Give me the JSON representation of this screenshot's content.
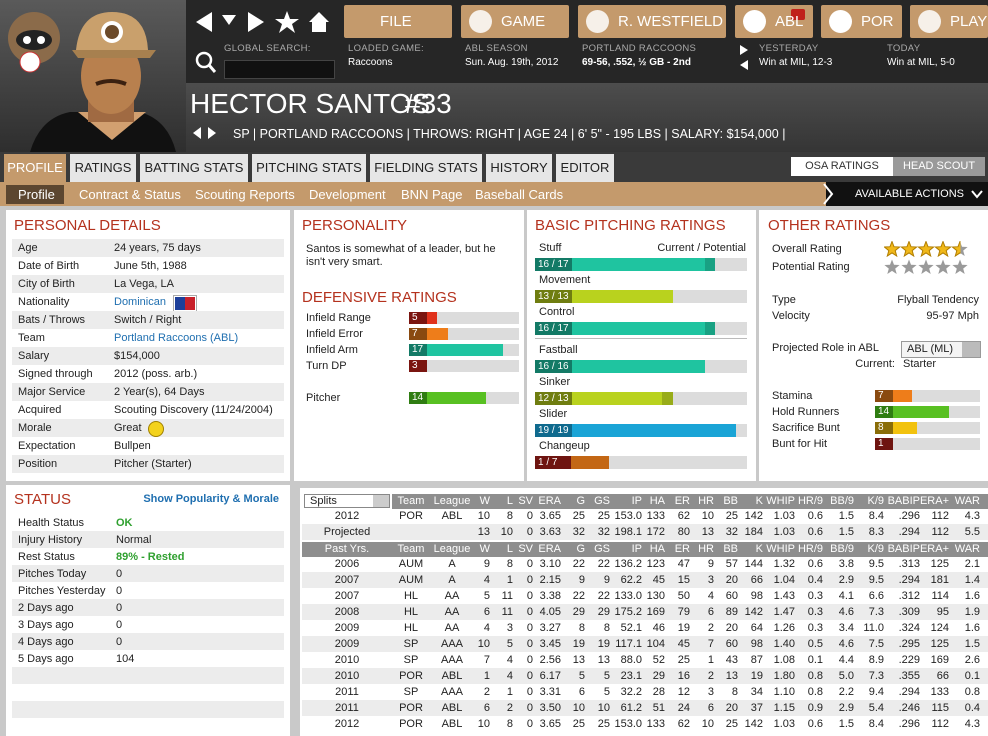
{
  "header": {
    "nav_buttons": [
      "FILE",
      "GAME",
      "R. WESTFIELD",
      "ABL",
      "POR",
      "PLAY"
    ],
    "search_label": "GLOBAL SEARCH:",
    "info": [
      {
        "label": "LOADED GAME:",
        "value": "Raccoons"
      },
      {
        "label": "ABL SEASON",
        "value": "Sun. Aug. 19th, 2012"
      },
      {
        "label": "PORTLAND RACCOONS",
        "value": "69-56, .552, ½ GB - 2nd"
      },
      {
        "label": "YESTERDAY",
        "value": "Win at MIL, 12-3"
      },
      {
        "label": "TODAY",
        "value": "Win at MIL, 5-0"
      }
    ]
  },
  "player": {
    "name": "HECTOR SANTOS",
    "number": "#33",
    "info": "SP | PORTLAND RACCOONS | THROWS: RIGHT | AGE 24 | 6' 5\" - 195 LBS | SALARY: $154,000 |"
  },
  "tabs": [
    "PROFILE",
    "RATINGS",
    "BATTING STATS",
    "PITCHING STATS",
    "FIELDING STATS",
    "HISTORY",
    "EDITOR"
  ],
  "scout_tabs": [
    "OSA RATINGS",
    "HEAD SCOUT"
  ],
  "subtabs": [
    "Profile",
    "Contract & Status",
    "Scouting Reports",
    "Development",
    "BNN Page",
    "Baseball Cards"
  ],
  "actions": "AVAILABLE ACTIONS",
  "rating_scale": [
    0,
    20
  ],
  "personal_details": {
    "title": "PERSONAL DETAILS",
    "rows": [
      [
        "Age",
        "24 years, 75 days"
      ],
      [
        "Date of Birth",
        "June 5th, 1988"
      ],
      [
        "City of Birth",
        "La Vega, LA"
      ],
      [
        "Nationality",
        "Dominican"
      ],
      [
        "Bats / Throws",
        "Switch / Right"
      ],
      [
        "Team",
        "Portland Raccoons (ABL)"
      ],
      [
        "Salary",
        "$154,000"
      ],
      [
        "Signed through",
        "2012 (poss. arb.)"
      ],
      [
        "Major Service",
        "2 Year(s), 64 Days"
      ],
      [
        "Acquired",
        "Scouting Discovery (11/24/2004)"
      ],
      [
        "Morale",
        "Great"
      ],
      [
        "Expectation",
        "Bullpen"
      ],
      [
        "Position",
        "Pitcher (Starter)"
      ]
    ]
  },
  "personality": {
    "title": "PERSONALITY",
    "text": "Santos is somewhat of a leader, but he isn't very smart."
  },
  "defensive": {
    "title": "DEFENSIVE RATINGS",
    "rows": [
      {
        "label": "Infield Range",
        "value": 5
      },
      {
        "label": "Infield Error",
        "value": 7
      },
      {
        "label": "Infield Arm",
        "value": 17
      },
      {
        "label": "Turn DP",
        "value": 3
      },
      {
        "label": "Pitcher",
        "value": 14
      }
    ]
  },
  "pitching": {
    "title": "BASIC PITCHING RATINGS",
    "header": "Current / Potential",
    "rows": [
      {
        "label": "Stuff",
        "current": 16,
        "potential": 17,
        "value_label": "16 / 17"
      },
      {
        "label": "Movement",
        "current": 13,
        "potential": 13,
        "value_label": "13 / 13"
      },
      {
        "label": "Control",
        "current": 16,
        "potential": 17,
        "value_label": "16 / 17"
      },
      {
        "label": "Fastball",
        "current": 16,
        "potential": 16,
        "value_label": "16 / 16"
      },
      {
        "label": "Sinker",
        "current": 12,
        "potential": 13,
        "value_label": "12 / 13"
      },
      {
        "label": "Slider",
        "current": 19,
        "potential": 19,
        "value_label": "19 / 19"
      },
      {
        "label": "Changeup",
        "current": 1,
        "potential": 7,
        "value_label": "1 / 7"
      }
    ]
  },
  "other_ratings": {
    "title": "OTHER RATINGS",
    "star_scale": [
      0,
      5
    ],
    "stars": [
      {
        "label": "Overall Rating",
        "value": 4.5
      },
      {
        "label": "Potential Rating",
        "value": 0
      }
    ],
    "info": [
      [
        "Type",
        "Flyball Tendency"
      ],
      [
        "Velocity",
        "95-97 Mph"
      ]
    ],
    "role_label": "Projected Role in ABL",
    "role_value": "ABL (ML)",
    "current_label": "Current:",
    "current_value": "Starter",
    "bars": [
      {
        "label": "Stamina",
        "value": 7
      },
      {
        "label": "Hold Runners",
        "value": 14
      },
      {
        "label": "Sacrifice Bunt",
        "value": 8
      },
      {
        "label": "Bunt for Hit",
        "value": 1
      }
    ]
  },
  "status": {
    "title": "STATUS",
    "link": "Show Popularity & Morale",
    "rows": [
      [
        "Health Status",
        "OK"
      ],
      [
        "Injury History",
        "Normal"
      ],
      [
        "Rest Status",
        "89% - Rested"
      ],
      [
        "Pitches Today",
        "0"
      ],
      [
        "Pitches Yesterday",
        "0"
      ],
      [
        "2 Days ago",
        "0"
      ],
      [
        "3 Days ago",
        "0"
      ],
      [
        "4 Days ago",
        "0"
      ],
      [
        "5 Days ago",
        "104"
      ]
    ]
  },
  "stats": {
    "split": "Splits",
    "past_header": "Past Yrs.",
    "columns": [
      "Team",
      "League",
      "W",
      "L",
      "SV",
      "ERA",
      "G",
      "GS",
      "IP",
      "HA",
      "ER",
      "HR",
      "BB",
      "K",
      "WHIP",
      "HR/9",
      "BB/9",
      "K/9",
      "BABIP",
      "ERA+",
      "WAR"
    ],
    "rows": [
      [
        "2012",
        "POR",
        "ABL",
        "10",
        "8",
        "0",
        "3.65",
        "25",
        "25",
        "153.0",
        "133",
        "62",
        "10",
        "25",
        "142",
        "1.03",
        "0.6",
        "1.5",
        "8.4",
        ".296",
        "112",
        "4.3"
      ],
      [
        "Projected",
        null,
        null,
        "13",
        "10",
        "0",
        "3.63",
        "32",
        "32",
        "198.1",
        "172",
        "80",
        "13",
        "32",
        "184",
        "1.03",
        "0.6",
        "1.5",
        "8.3",
        ".294",
        "112",
        "5.5"
      ]
    ],
    "past_rows": [
      [
        "2006",
        "AUM",
        "A",
        "9",
        "8",
        "0",
        "3.10",
        "22",
        "22",
        "136.2",
        "123",
        "47",
        "9",
        "57",
        "144",
        "1.32",
        "0.6",
        "3.8",
        "9.5",
        ".313",
        "125",
        "2.1"
      ],
      [
        "2007",
        "AUM",
        "A",
        "4",
        "1",
        "0",
        "2.15",
        "9",
        "9",
        "62.2",
        "45",
        "15",
        "3",
        "20",
        "66",
        "1.04",
        "0.4",
        "2.9",
        "9.5",
        ".294",
        "181",
        "1.4"
      ],
      [
        "2007",
        "HL",
        "AA",
        "5",
        "11",
        "0",
        "3.38",
        "22",
        "22",
        "133.0",
        "130",
        "50",
        "4",
        "60",
        "98",
        "1.43",
        "0.3",
        "4.1",
        "6.6",
        ".312",
        "114",
        "1.6"
      ],
      [
        "2008",
        "HL",
        "AA",
        "6",
        "11",
        "0",
        "4.05",
        "29",
        "29",
        "175.2",
        "169",
        "79",
        "6",
        "89",
        "142",
        "1.47",
        "0.3",
        "4.6",
        "7.3",
        ".309",
        "95",
        "1.9"
      ],
      [
        "2009",
        "HL",
        "AA",
        "4",
        "3",
        "0",
        "3.27",
        "8",
        "8",
        "52.1",
        "46",
        "19",
        "2",
        "20",
        "64",
        "1.26",
        "0.3",
        "3.4",
        "11.0",
        ".324",
        "124",
        "1.6"
      ],
      [
        "2009",
        "SP",
        "AAA",
        "10",
        "5",
        "0",
        "3.45",
        "19",
        "19",
        "117.1",
        "104",
        "45",
        "7",
        "60",
        "98",
        "1.40",
        "0.5",
        "4.6",
        "7.5",
        ".295",
        "125",
        "1.5"
      ],
      [
        "2010",
        "SP",
        "AAA",
        "7",
        "4",
        "0",
        "2.56",
        "13",
        "13",
        "88.0",
        "52",
        "25",
        "1",
        "43",
        "87",
        "1.08",
        "0.1",
        "4.4",
        "8.9",
        ".229",
        "169",
        "2.6"
      ],
      [
        "2010",
        "POR",
        "ABL",
        "1",
        "4",
        "0",
        "6.17",
        "5",
        "5",
        "23.1",
        "29",
        "16",
        "2",
        "13",
        "19",
        "1.80",
        "0.8",
        "5.0",
        "7.3",
        ".355",
        "66",
        "0.1"
      ],
      [
        "2011",
        "SP",
        "AAA",
        "2",
        "1",
        "0",
        "3.31",
        "6",
        "5",
        "32.2",
        "28",
        "12",
        "3",
        "8",
        "34",
        "1.10",
        "0.8",
        "2.2",
        "9.4",
        ".294",
        "133",
        "0.8"
      ],
      [
        "2011",
        "POR",
        "ABL",
        "6",
        "2",
        "0",
        "3.50",
        "10",
        "10",
        "61.2",
        "51",
        "24",
        "6",
        "20",
        "37",
        "1.15",
        "0.9",
        "2.9",
        "5.4",
        ".246",
        "115",
        "0.4"
      ],
      [
        "2012",
        "POR",
        "ABL",
        "10",
        "8",
        "0",
        "3.65",
        "25",
        "25",
        "153.0",
        "133",
        "62",
        "10",
        "25",
        "142",
        "1.03",
        "0.6",
        "1.5",
        "8.4",
        ".296",
        "112",
        "4.3"
      ]
    ]
  }
}
